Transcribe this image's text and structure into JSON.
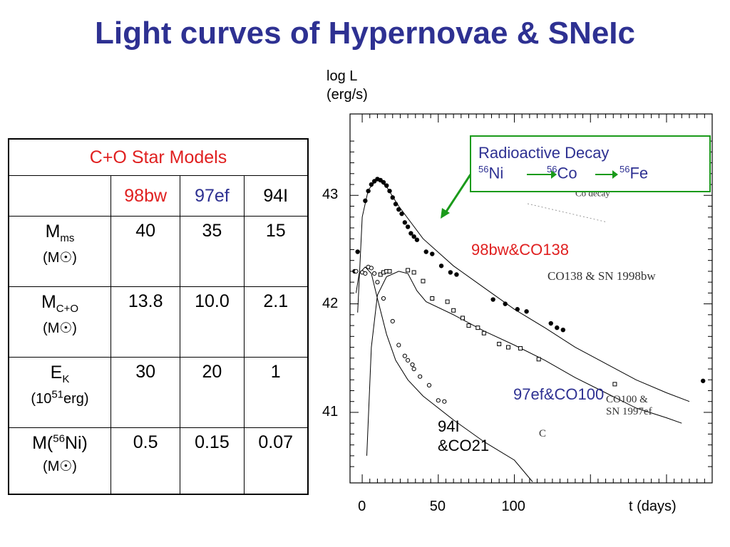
{
  "title": "Light curves of Hypernovae & SNeIc",
  "table": {
    "header": "C+O Star Models",
    "columns": [
      "98bw",
      "97ef",
      "94I"
    ],
    "column_colors": [
      "#e02020",
      "#2e3192",
      "#000000"
    ],
    "rows": [
      {
        "name": "M",
        "sub": "ms",
        "unit": "(M☉)",
        "values": [
          "40",
          "35",
          "15"
        ]
      },
      {
        "name": "M",
        "sub": "C+O",
        "unit": "(M☉)",
        "values": [
          "13.8",
          "10.0",
          "2.1"
        ]
      },
      {
        "name": "E",
        "sub": "K",
        "unit_pre": "(10",
        "unit_sup": "51",
        "unit_post": "erg)",
        "values": [
          "30",
          "20",
          "1"
        ]
      },
      {
        "name_pre": "M(",
        "name_sup": "56",
        "name_post": "Ni)",
        "unit": "(M☉)",
        "values": [
          "0.5",
          "0.15",
          "0.07"
        ]
      }
    ]
  },
  "decay_box": {
    "title": "Radioactive Decay",
    "ni_sup": "56",
    "ni": "Ni",
    "co_sup": "56",
    "co": "Co",
    "fe_sup": "56",
    "fe": "Fe",
    "border_color": "#1a9a1a"
  },
  "faint_labels": {
    "co_decay_sup": "56",
    "co_decay": "Co decay",
    "bw_shadow": "CO138 & SN 1998bw",
    "ef_shadow": "CO100 & SN 1997ef",
    "i_shadow": "C"
  },
  "chart_data": {
    "type": "scatter",
    "title": "",
    "xlabel": "t (days)",
    "ylabel_line1": "log L",
    "ylabel_line2": "(erg/s)",
    "xlim": [
      -8,
      230
    ],
    "ylim": [
      40.35,
      43.75
    ],
    "x_ticks": [
      "0",
      "50",
      "100"
    ],
    "x_tick_values": [
      0,
      50,
      100
    ],
    "y_ticks": [
      "43",
      "42",
      "41"
    ],
    "y_tick_values": [
      43,
      42,
      41
    ],
    "series": [
      {
        "name": "98bw&CO138",
        "color": "#e02020",
        "marker": "filled-circle",
        "points": [
          [
            -5,
            42.3
          ],
          [
            -3,
            42.48
          ],
          [
            2,
            42.95
          ],
          [
            4,
            43.04
          ],
          [
            6,
            43.1
          ],
          [
            8,
            43.13
          ],
          [
            10,
            43.15
          ],
          [
            12,
            43.14
          ],
          [
            14,
            43.12
          ],
          [
            16,
            43.09
          ],
          [
            18,
            43.04
          ],
          [
            20,
            42.98
          ],
          [
            22,
            42.92
          ],
          [
            24,
            42.87
          ],
          [
            26,
            42.83
          ],
          [
            28,
            42.75
          ],
          [
            30,
            42.71
          ],
          [
            32,
            42.65
          ],
          [
            34,
            42.62
          ],
          [
            36,
            42.59
          ],
          [
            42,
            42.48
          ],
          [
            46,
            42.46
          ],
          [
            52,
            42.35
          ],
          [
            58,
            42.29
          ],
          [
            62,
            42.27
          ],
          [
            86,
            42.04
          ],
          [
            94,
            42.0
          ],
          [
            102,
            41.95
          ],
          [
            108,
            41.93
          ],
          [
            124,
            41.82
          ],
          [
            128,
            41.78
          ],
          [
            132,
            41.76
          ],
          [
            224,
            41.29
          ]
        ],
        "model": [
          [
            -3,
            41.92
          ],
          [
            0,
            42.8
          ],
          [
            4,
            43.05
          ],
          [
            10,
            43.15
          ],
          [
            16,
            43.08
          ],
          [
            24,
            42.9
          ],
          [
            40,
            42.6
          ],
          [
            60,
            42.35
          ],
          [
            80,
            42.15
          ],
          [
            100,
            41.95
          ],
          [
            120,
            41.78
          ],
          [
            140,
            41.6
          ],
          [
            160,
            41.45
          ],
          [
            180,
            41.3
          ],
          [
            200,
            41.18
          ],
          [
            215,
            41.1
          ]
        ]
      },
      {
        "name": "97ef&CO100",
        "color": "#2e3192",
        "marker": "open-square",
        "points": [
          [
            12,
            42.27
          ],
          [
            14,
            42.29
          ],
          [
            16,
            42.3
          ],
          [
            18,
            42.3
          ],
          [
            30,
            42.31
          ],
          [
            34,
            42.29
          ],
          [
            40,
            42.21
          ],
          [
            46,
            42.05
          ],
          [
            56,
            42.02
          ],
          [
            60,
            41.94
          ],
          [
            66,
            41.87
          ],
          [
            70,
            41.8
          ],
          [
            76,
            41.78
          ],
          [
            80,
            41.73
          ],
          [
            90,
            41.63
          ],
          [
            96,
            41.6
          ],
          [
            104,
            41.59
          ],
          [
            116,
            41.49
          ],
          [
            166,
            41.26
          ]
        ],
        "model": [
          [
            3,
            40.6
          ],
          [
            6,
            41.6
          ],
          [
            10,
            42.08
          ],
          [
            16,
            42.25
          ],
          [
            24,
            42.3
          ],
          [
            30,
            42.28
          ],
          [
            36,
            42.12
          ],
          [
            42,
            42.02
          ],
          [
            60,
            41.9
          ],
          [
            80,
            41.75
          ],
          [
            100,
            41.62
          ],
          [
            120,
            41.48
          ],
          [
            140,
            41.32
          ],
          [
            160,
            41.18
          ],
          [
            180,
            41.04
          ],
          [
            200,
            40.95
          ],
          [
            210,
            40.9
          ]
        ]
      },
      {
        "name": "94I&CO21",
        "color": "#000000",
        "marker": "open-circle",
        "points": [
          [
            -4,
            42.3
          ],
          [
            0,
            42.29
          ],
          [
            2,
            42.28
          ],
          [
            4,
            42.34
          ],
          [
            6,
            42.33
          ],
          [
            8,
            42.28
          ],
          [
            10,
            42.2
          ],
          [
            14,
            42.05
          ],
          [
            20,
            41.84
          ],
          [
            24,
            41.62
          ],
          [
            28,
            41.52
          ],
          [
            30,
            41.48
          ],
          [
            33,
            41.44
          ],
          [
            34,
            41.4
          ],
          [
            38,
            41.33
          ],
          [
            44,
            41.25
          ],
          [
            50,
            41.11
          ],
          [
            54,
            41.1
          ]
        ],
        "model": [
          [
            -4,
            42.1
          ],
          [
            -2,
            42.28
          ],
          [
            2,
            42.34
          ],
          [
            6,
            42.28
          ],
          [
            10,
            42.05
          ],
          [
            16,
            41.72
          ],
          [
            22,
            41.48
          ],
          [
            30,
            41.3
          ],
          [
            40,
            41.15
          ],
          [
            60,
            40.93
          ],
          [
            80,
            40.73
          ],
          [
            100,
            40.56
          ],
          [
            112,
            40.36
          ]
        ]
      }
    ],
    "grid": false,
    "legend": "none"
  }
}
